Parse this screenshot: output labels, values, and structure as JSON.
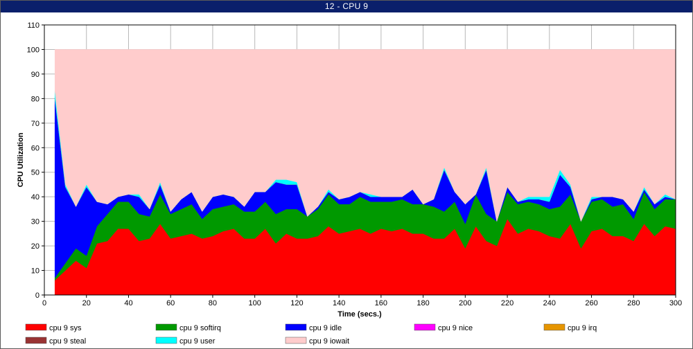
{
  "window": {
    "title": "12 - CPU 9"
  },
  "chart_data": {
    "type": "area",
    "stacked": true,
    "xlabel": "Time (secs.)",
    "ylabel": "CPU Utilization",
    "xlim": [
      0,
      300
    ],
    "ylim": [
      0,
      110
    ],
    "x_ticks": [
      0,
      20,
      40,
      60,
      80,
      100,
      120,
      140,
      160,
      180,
      200,
      220,
      240,
      260,
      280,
      300
    ],
    "y_ticks": [
      0,
      10,
      20,
      30,
      40,
      50,
      60,
      70,
      80,
      90,
      100,
      110
    ],
    "grid": true,
    "legend_position": "bottom",
    "x": [
      5,
      10,
      15,
      20,
      25,
      30,
      35,
      40,
      45,
      50,
      55,
      60,
      65,
      70,
      75,
      80,
      85,
      90,
      95,
      100,
      105,
      110,
      115,
      120,
      125,
      130,
      135,
      140,
      145,
      150,
      155,
      160,
      165,
      170,
      175,
      180,
      185,
      190,
      195,
      200,
      205,
      210,
      215,
      220,
      225,
      230,
      235,
      240,
      245,
      250,
      255,
      260,
      265,
      270,
      275,
      280,
      285,
      290,
      295,
      300
    ],
    "series": [
      {
        "name": "cpu 9 sys",
        "color": "#ff0000",
        "values": [
          6,
          10,
          14,
          11,
          21,
          22,
          27,
          27,
          22,
          23,
          29,
          23,
          24,
          25,
          23,
          24,
          26,
          27,
          23,
          23,
          27,
          21,
          25,
          23,
          23,
          24,
          28,
          25,
          26,
          27,
          25,
          27,
          26,
          27,
          25,
          25,
          23,
          23,
          27,
          19,
          28,
          22,
          20,
          31,
          25,
          27,
          26,
          24,
          23,
          29,
          19,
          26,
          27,
          24,
          24,
          22,
          29,
          24,
          28,
          27
        ]
      },
      {
        "name": "cpu 9 softirq",
        "color": "#009900",
        "values": [
          1,
          3,
          5,
          5,
          7,
          11,
          11,
          11,
          11,
          9,
          12,
          10,
          11,
          12,
          8,
          11,
          10,
          10,
          11,
          11,
          11,
          12,
          10,
          12,
          9,
          11,
          13,
          12,
          11,
          13,
          13,
          11,
          12,
          12,
          12,
          12,
          13,
          11,
          11,
          10,
          13,
          11,
          10,
          11,
          12,
          11,
          11,
          11,
          13,
          12,
          11,
          12,
          12,
          12,
          13,
          9,
          13,
          11,
          11,
          12
        ]
      },
      {
        "name": "cpu 9 idle",
        "color": "#0000ff",
        "values": [
          73,
          31,
          17,
          28,
          10,
          4,
          2,
          3,
          7,
          3,
          4,
          1,
          4,
          5,
          3,
          5,
          5,
          3,
          2,
          8,
          4,
          13,
          10,
          10,
          0,
          1,
          1,
          2,
          3,
          2,
          2,
          2,
          2,
          1,
          6,
          0,
          3,
          17,
          4,
          8,
          0,
          18,
          0,
          2,
          1,
          1,
          2,
          3,
          13,
          3,
          0,
          1,
          1,
          4,
          2,
          3,
          1,
          2,
          1,
          0
        ]
      },
      {
        "name": "cpu 9 nice",
        "color": "#ff00ff",
        "values": [
          0,
          0,
          0,
          0,
          0,
          0,
          0,
          0,
          0,
          0,
          0,
          0,
          0,
          0,
          0,
          0,
          0,
          0,
          0,
          0,
          0,
          0,
          0,
          0,
          0,
          0,
          0,
          0,
          0,
          0,
          0,
          0,
          0,
          0,
          0,
          0,
          0,
          0,
          0,
          0,
          0,
          0,
          0,
          0,
          0,
          0,
          0,
          0,
          0,
          0,
          0,
          0,
          0,
          0,
          0,
          0,
          0,
          0,
          0,
          0
        ]
      },
      {
        "name": "cpu 9 irq",
        "color": "#e69500",
        "values": [
          0,
          0,
          0,
          0,
          0,
          0,
          0,
          0,
          0,
          0,
          0,
          0,
          0,
          0,
          0,
          0,
          0,
          0,
          0,
          0,
          0,
          0,
          0,
          0,
          0,
          0,
          0,
          0,
          0,
          0,
          0,
          0,
          0,
          0,
          0,
          0,
          0,
          0,
          0,
          0,
          0,
          0,
          0,
          0,
          0,
          0,
          0,
          0,
          0,
          0,
          0,
          0,
          0,
          0,
          0,
          0,
          0,
          0,
          0,
          0
        ]
      },
      {
        "name": "cpu 9 steal",
        "color": "#993333",
        "values": [
          0,
          0,
          0,
          0,
          0,
          0,
          0,
          0,
          0,
          0,
          0,
          0,
          0,
          0,
          0,
          0,
          0,
          0,
          0,
          0,
          0,
          0,
          0,
          0,
          0,
          0,
          0,
          0,
          0,
          0,
          0,
          0,
          0,
          0,
          0,
          0,
          0,
          0,
          0,
          0,
          0,
          0,
          0,
          0,
          0,
          0,
          0,
          0,
          0,
          0,
          0,
          0,
          0,
          0,
          0,
          0,
          0,
          0,
          0,
          0
        ]
      },
      {
        "name": "cpu 9 user",
        "color": "#00ffff",
        "values": [
          3,
          1,
          0,
          1,
          0,
          0,
          0,
          0,
          1,
          0,
          1,
          0,
          0,
          0,
          0,
          0,
          0,
          0,
          0,
          0,
          0,
          1,
          2,
          1,
          0,
          0,
          1,
          0,
          0,
          0,
          1,
          0,
          0,
          0,
          0,
          0,
          0,
          1,
          0,
          0,
          0,
          1,
          0,
          0,
          0,
          1,
          1,
          2,
          2,
          1,
          0,
          1,
          0,
          0,
          0,
          0,
          1,
          0,
          1,
          0
        ]
      },
      {
        "name": "cpu 9 iowait",
        "color": "#ffcccc",
        "values": [
          17,
          55,
          64,
          55,
          62,
          63,
          60,
          59,
          59,
          65,
          54,
          66,
          61,
          58,
          66,
          60,
          59,
          60,
          64,
          58,
          58,
          53,
          53,
          54,
          68,
          64,
          57,
          61,
          60,
          58,
          59,
          60,
          60,
          60,
          57,
          63,
          61,
          48,
          58,
          63,
          59,
          48,
          70,
          56,
          62,
          60,
          60,
          60,
          49,
          55,
          70,
          60,
          60,
          60,
          61,
          66,
          56,
          63,
          59,
          61
        ]
      }
    ]
  }
}
